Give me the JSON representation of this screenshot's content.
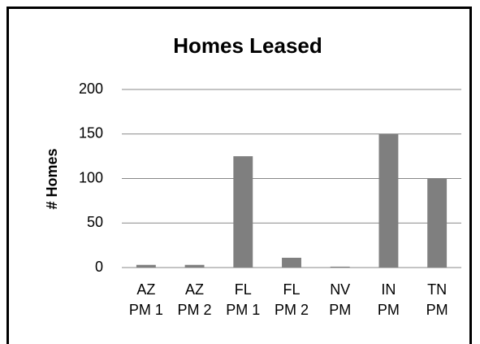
{
  "chart_data": {
    "type": "bar",
    "title": "Homes Leased",
    "y_label": "# Homes",
    "categories": [
      "AZ\nPM 1",
      "AZ\nPM 2",
      "FL\nPM 1",
      "FL\nPM 2",
      "NV\nPM",
      "IN\nPM",
      "TN\nPM"
    ],
    "values": [
      3,
      3,
      125,
      11,
      1,
      150,
      100
    ],
    "color": "#7f7f7f",
    "ylim": [
      0,
      200
    ],
    "yticks": [
      0,
      50,
      100,
      150,
      200
    ],
    "grid": true
  }
}
